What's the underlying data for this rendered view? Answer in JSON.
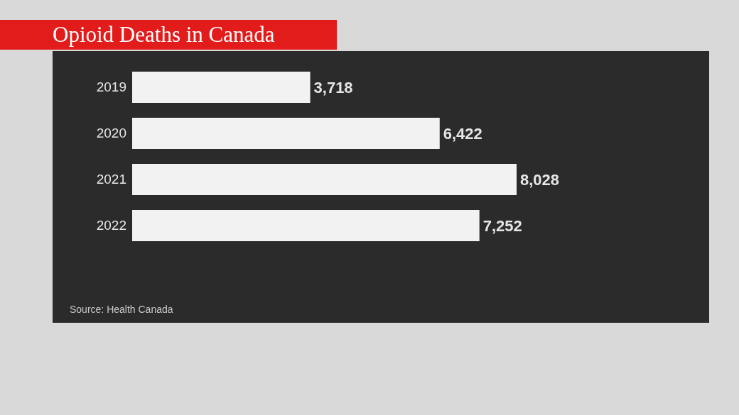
{
  "chart_data": {
    "type": "bar",
    "orientation": "horizontal",
    "title": "Opioid Deaths in Canada",
    "categories": [
      "2019",
      "2020",
      "2021",
      "2022"
    ],
    "values": [
      3718,
      6422,
      8028,
      7252
    ],
    "value_labels": [
      "3,718",
      "6,422",
      "8,028",
      "7,252"
    ],
    "color": "#f2f2f2",
    "annotations": [
      "Source: Health Canada"
    ]
  }
}
